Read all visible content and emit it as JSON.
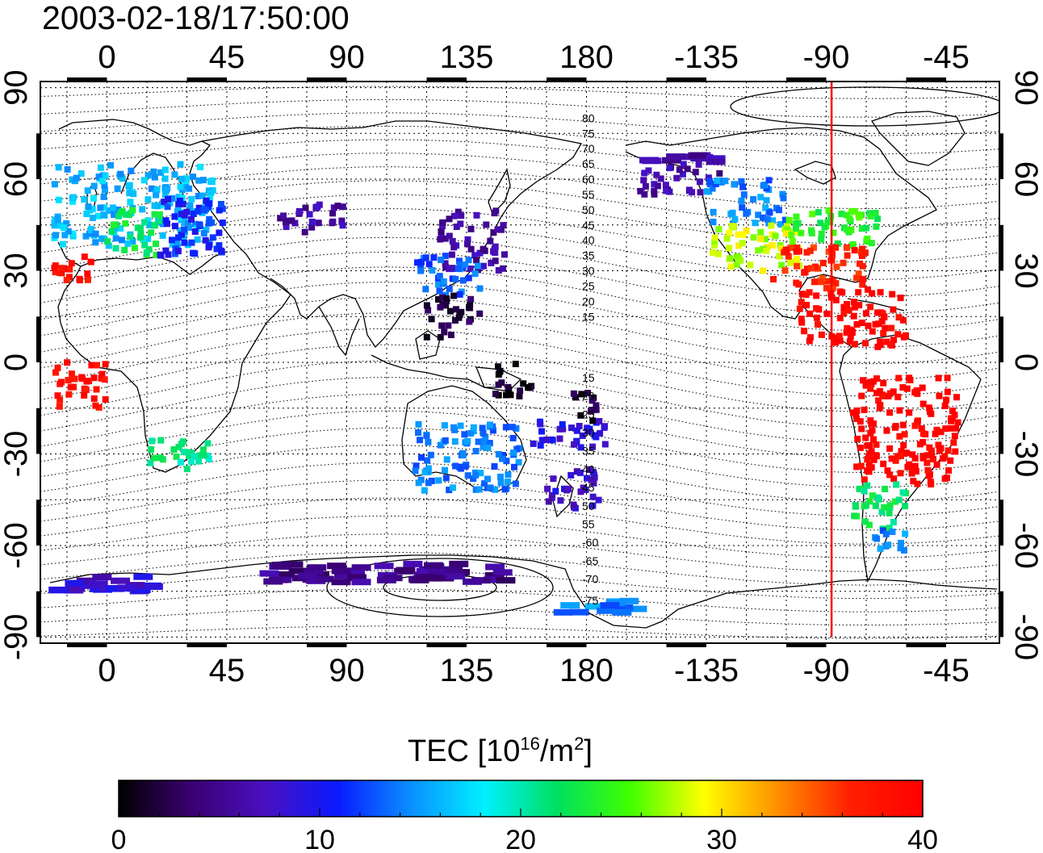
{
  "title": "2003-02-18/17:50:00",
  "axes": {
    "lon_ticks": [
      {
        "lon": 0,
        "label": "0"
      },
      {
        "lon": 45,
        "label": "45"
      },
      {
        "lon": 90,
        "label": "90"
      },
      {
        "lon": 135,
        "label": "135"
      },
      {
        "lon": 180,
        "label": "180"
      },
      {
        "lon": 225,
        "label": "-135"
      },
      {
        "lon": 270,
        "label": "-90"
      },
      {
        "lon": 315,
        "label": "-45"
      }
    ],
    "lat_ticks": [
      {
        "lat": 90,
        "label": "90"
      },
      {
        "lat": 60,
        "label": "60"
      },
      {
        "lat": 30,
        "label": "30"
      },
      {
        "lat": 0,
        "label": "0"
      },
      {
        "lat": -30,
        "label": "-30"
      },
      {
        "lat": -60,
        "label": "-60"
      },
      {
        "lat": -90,
        "label": "-90"
      }
    ],
    "lon_range": [
      -25,
      335
    ],
    "lat_range": [
      -92,
      92
    ],
    "grid": true
  },
  "meridian_marker": {
    "lon": 272,
    "color": "#ff0000"
  },
  "contour_labels_north": [
    {
      "lat": 80,
      "label": "80"
    },
    {
      "lat": 75,
      "label": "75"
    },
    {
      "lat": 70,
      "label": "70"
    },
    {
      "lat": 65,
      "label": "65"
    },
    {
      "lat": 60,
      "label": "60"
    },
    {
      "lat": 55,
      "label": "55"
    },
    {
      "lat": 50,
      "label": "50"
    },
    {
      "lat": 45,
      "label": "45"
    },
    {
      "lat": 40,
      "label": "40"
    },
    {
      "lat": 35,
      "label": "35"
    },
    {
      "lat": 30,
      "label": "30"
    },
    {
      "lat": 25,
      "label": "25"
    },
    {
      "lat": 20,
      "label": "20"
    },
    {
      "lat": 15,
      "label": "15"
    }
  ],
  "contour_labels_south": [
    {
      "lat": -5,
      "label": "15"
    },
    {
      "lat": -11,
      "label": "20"
    },
    {
      "lat": -17,
      "label": "25"
    },
    {
      "lat": -23,
      "label": "30"
    },
    {
      "lat": -29,
      "label": "35"
    },
    {
      "lat": -35,
      "label": "40"
    },
    {
      "lat": -41,
      "label": "45"
    },
    {
      "lat": -47,
      "label": "50"
    },
    {
      "lat": -53,
      "label": "55"
    },
    {
      "lat": -59,
      "label": "-60"
    },
    {
      "lat": -65,
      "label": "-65"
    },
    {
      "lat": -71,
      "label": "-70"
    },
    {
      "lat": -78,
      "label": "-75"
    }
  ],
  "colorbar": {
    "title_main": "TEC  [10",
    "title_sup1": "16",
    "title_mid": "/m",
    "title_sup2": "2",
    "title_end": "]",
    "min": 0,
    "max": 40,
    "ticks": [
      {
        "value": 0,
        "label": "0"
      },
      {
        "value": 10,
        "label": "10"
      },
      {
        "value": 20,
        "label": "20"
      },
      {
        "value": 30,
        "label": "30"
      },
      {
        "value": 40,
        "label": "40"
      }
    ],
    "colors": [
      "#000000",
      "#3a0070",
      "#4a10c0",
      "#0a1aff",
      "#0a90ff",
      "#00f0ff",
      "#00e060",
      "#40ff00",
      "#ffff00",
      "#ff9000",
      "#ff2000",
      "#ff0000"
    ]
  },
  "chart_data": {
    "type": "scatter",
    "title": "2003-02-18/17:50:00",
    "xlabel": "",
    "ylabel": "",
    "value_label": "TEC [10^16/m^2]",
    "xlim": [
      -25,
      335
    ],
    "ylim": [
      -92,
      92
    ],
    "clim": [
      0,
      40
    ],
    "regions": [
      {
        "lon": [
          -20,
          40
        ],
        "lat": [
          38,
          65
        ],
        "tec": 16
      },
      {
        "lon": [
          0,
          20
        ],
        "lat": [
          35,
          50
        ],
        "tec": 22
      },
      {
        "lon": [
          20,
          45
        ],
        "lat": [
          35,
          55
        ],
        "tec": 11
      },
      {
        "lon": [
          -20,
          -5
        ],
        "lat": [
          25,
          35
        ],
        "tec": 38
      },
      {
        "lon": [
          -20,
          0
        ],
        "lat": [
          -15,
          0
        ],
        "tec": 39
      },
      {
        "lon": [
          15,
          40
        ],
        "lat": [
          -35,
          -25
        ],
        "tec": 21
      },
      {
        "lon": [
          65,
          90
        ],
        "lat": [
          42,
          52
        ],
        "tec": 6
      },
      {
        "lon": [
          125,
          150
        ],
        "lat": [
          30,
          50
        ],
        "tec": 6
      },
      {
        "lon": [
          115,
          140
        ],
        "lat": [
          22,
          35
        ],
        "tec": 13
      },
      {
        "lon": [
          120,
          140
        ],
        "lat": [
          8,
          22
        ],
        "tec": 2
      },
      {
        "lon": [
          145,
          160
        ],
        "lat": [
          -12,
          0
        ],
        "tec": 1
      },
      {
        "lon": [
          115,
          155
        ],
        "lat": [
          -42,
          -20
        ],
        "tec": 14
      },
      {
        "lon": [
          165,
          185
        ],
        "lat": [
          -48,
          -35
        ],
        "tec": 8
      },
      {
        "lon": [
          160,
          190
        ],
        "lat": [
          -28,
          -18
        ],
        "tec": 9
      },
      {
        "lon": [
          175,
          185
        ],
        "lat": [
          -20,
          -10
        ],
        "tec": 2
      },
      {
        "lon": [
          200,
          230
        ],
        "lat": [
          55,
          68
        ],
        "tec": 6
      },
      {
        "lon": [
          225,
          255
        ],
        "lat": [
          45,
          60
        ],
        "tec": 14
      },
      {
        "lon": [
          225,
          260
        ],
        "lat": [
          30,
          45
        ],
        "tec": 28
      },
      {
        "lon": [
          255,
          290
        ],
        "lat": [
          38,
          50
        ],
        "tec": 24
      },
      {
        "lon": [
          250,
          285
        ],
        "lat": [
          24,
          38
        ],
        "tec": 37
      },
      {
        "lon": [
          260,
          300
        ],
        "lat": [
          5,
          24
        ],
        "tec": 40
      },
      {
        "lon": [
          280,
          320
        ],
        "lat": [
          -40,
          -5
        ],
        "tec": 40
      },
      {
        "lon": [
          280,
          300
        ],
        "lat": [
          -55,
          -40
        ],
        "tec": 22
      },
      {
        "lon": [
          285,
          300
        ],
        "lat": [
          -62,
          -55
        ],
        "tec": 14
      },
      {
        "lon": [
          -20,
          20
        ],
        "lat": [
          -75,
          -70
        ],
        "tec": 8
      },
      {
        "lon": [
          60,
          150
        ],
        "lat": [
          -72,
          -66
        ],
        "tec": 5
      },
      {
        "lon": [
          170,
          200
        ],
        "lat": [
          -82,
          -78
        ],
        "tec": 14
      }
    ]
  }
}
